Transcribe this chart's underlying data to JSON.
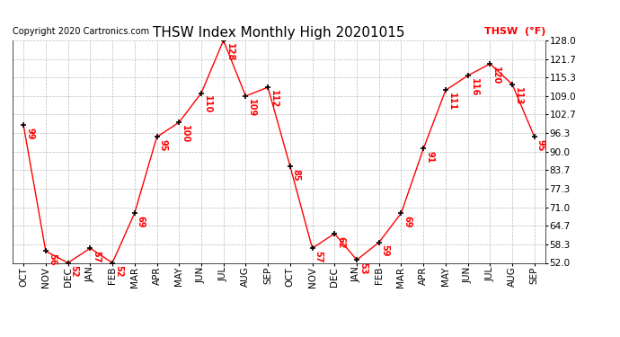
{
  "title": "THSW Index Monthly High 20201015",
  "copyright": "Copyright 2020 Cartronics.com",
  "legend_label": "THSW  (°F)",
  "x_labels": [
    "OCT",
    "NOV",
    "DEC",
    "JAN",
    "FEB",
    "MAR",
    "APR",
    "MAY",
    "JUN",
    "JUL",
    "AUG",
    "SEP",
    "OCT",
    "NOV",
    "DEC",
    "JAN",
    "FEB",
    "MAR",
    "APR",
    "MAY",
    "JUN",
    "JUL",
    "AUG",
    "SEP"
  ],
  "values": [
    99,
    56,
    52,
    57,
    52,
    69,
    95,
    100,
    110,
    128,
    109,
    112,
    85,
    57,
    62,
    53,
    59,
    69,
    91,
    111,
    116,
    120,
    113,
    95
  ],
  "line_color": "red",
  "marker_color": "black",
  "label_color": "red",
  "ylabel_color": "red",
  "title_color": "black",
  "copyright_color": "black",
  "background_color": "white",
  "grid_color": "#bbbbbb",
  "y_ticks": [
    52.0,
    58.3,
    64.7,
    71.0,
    77.3,
    83.7,
    90.0,
    96.3,
    102.7,
    109.0,
    115.3,
    121.7,
    128.0
  ],
  "ylim": [
    52.0,
    128.0
  ],
  "title_fontsize": 11,
  "value_label_fontsize": 7,
  "tick_fontsize": 7.5,
  "copyright_fontsize": 7,
  "legend_fontsize": 8
}
